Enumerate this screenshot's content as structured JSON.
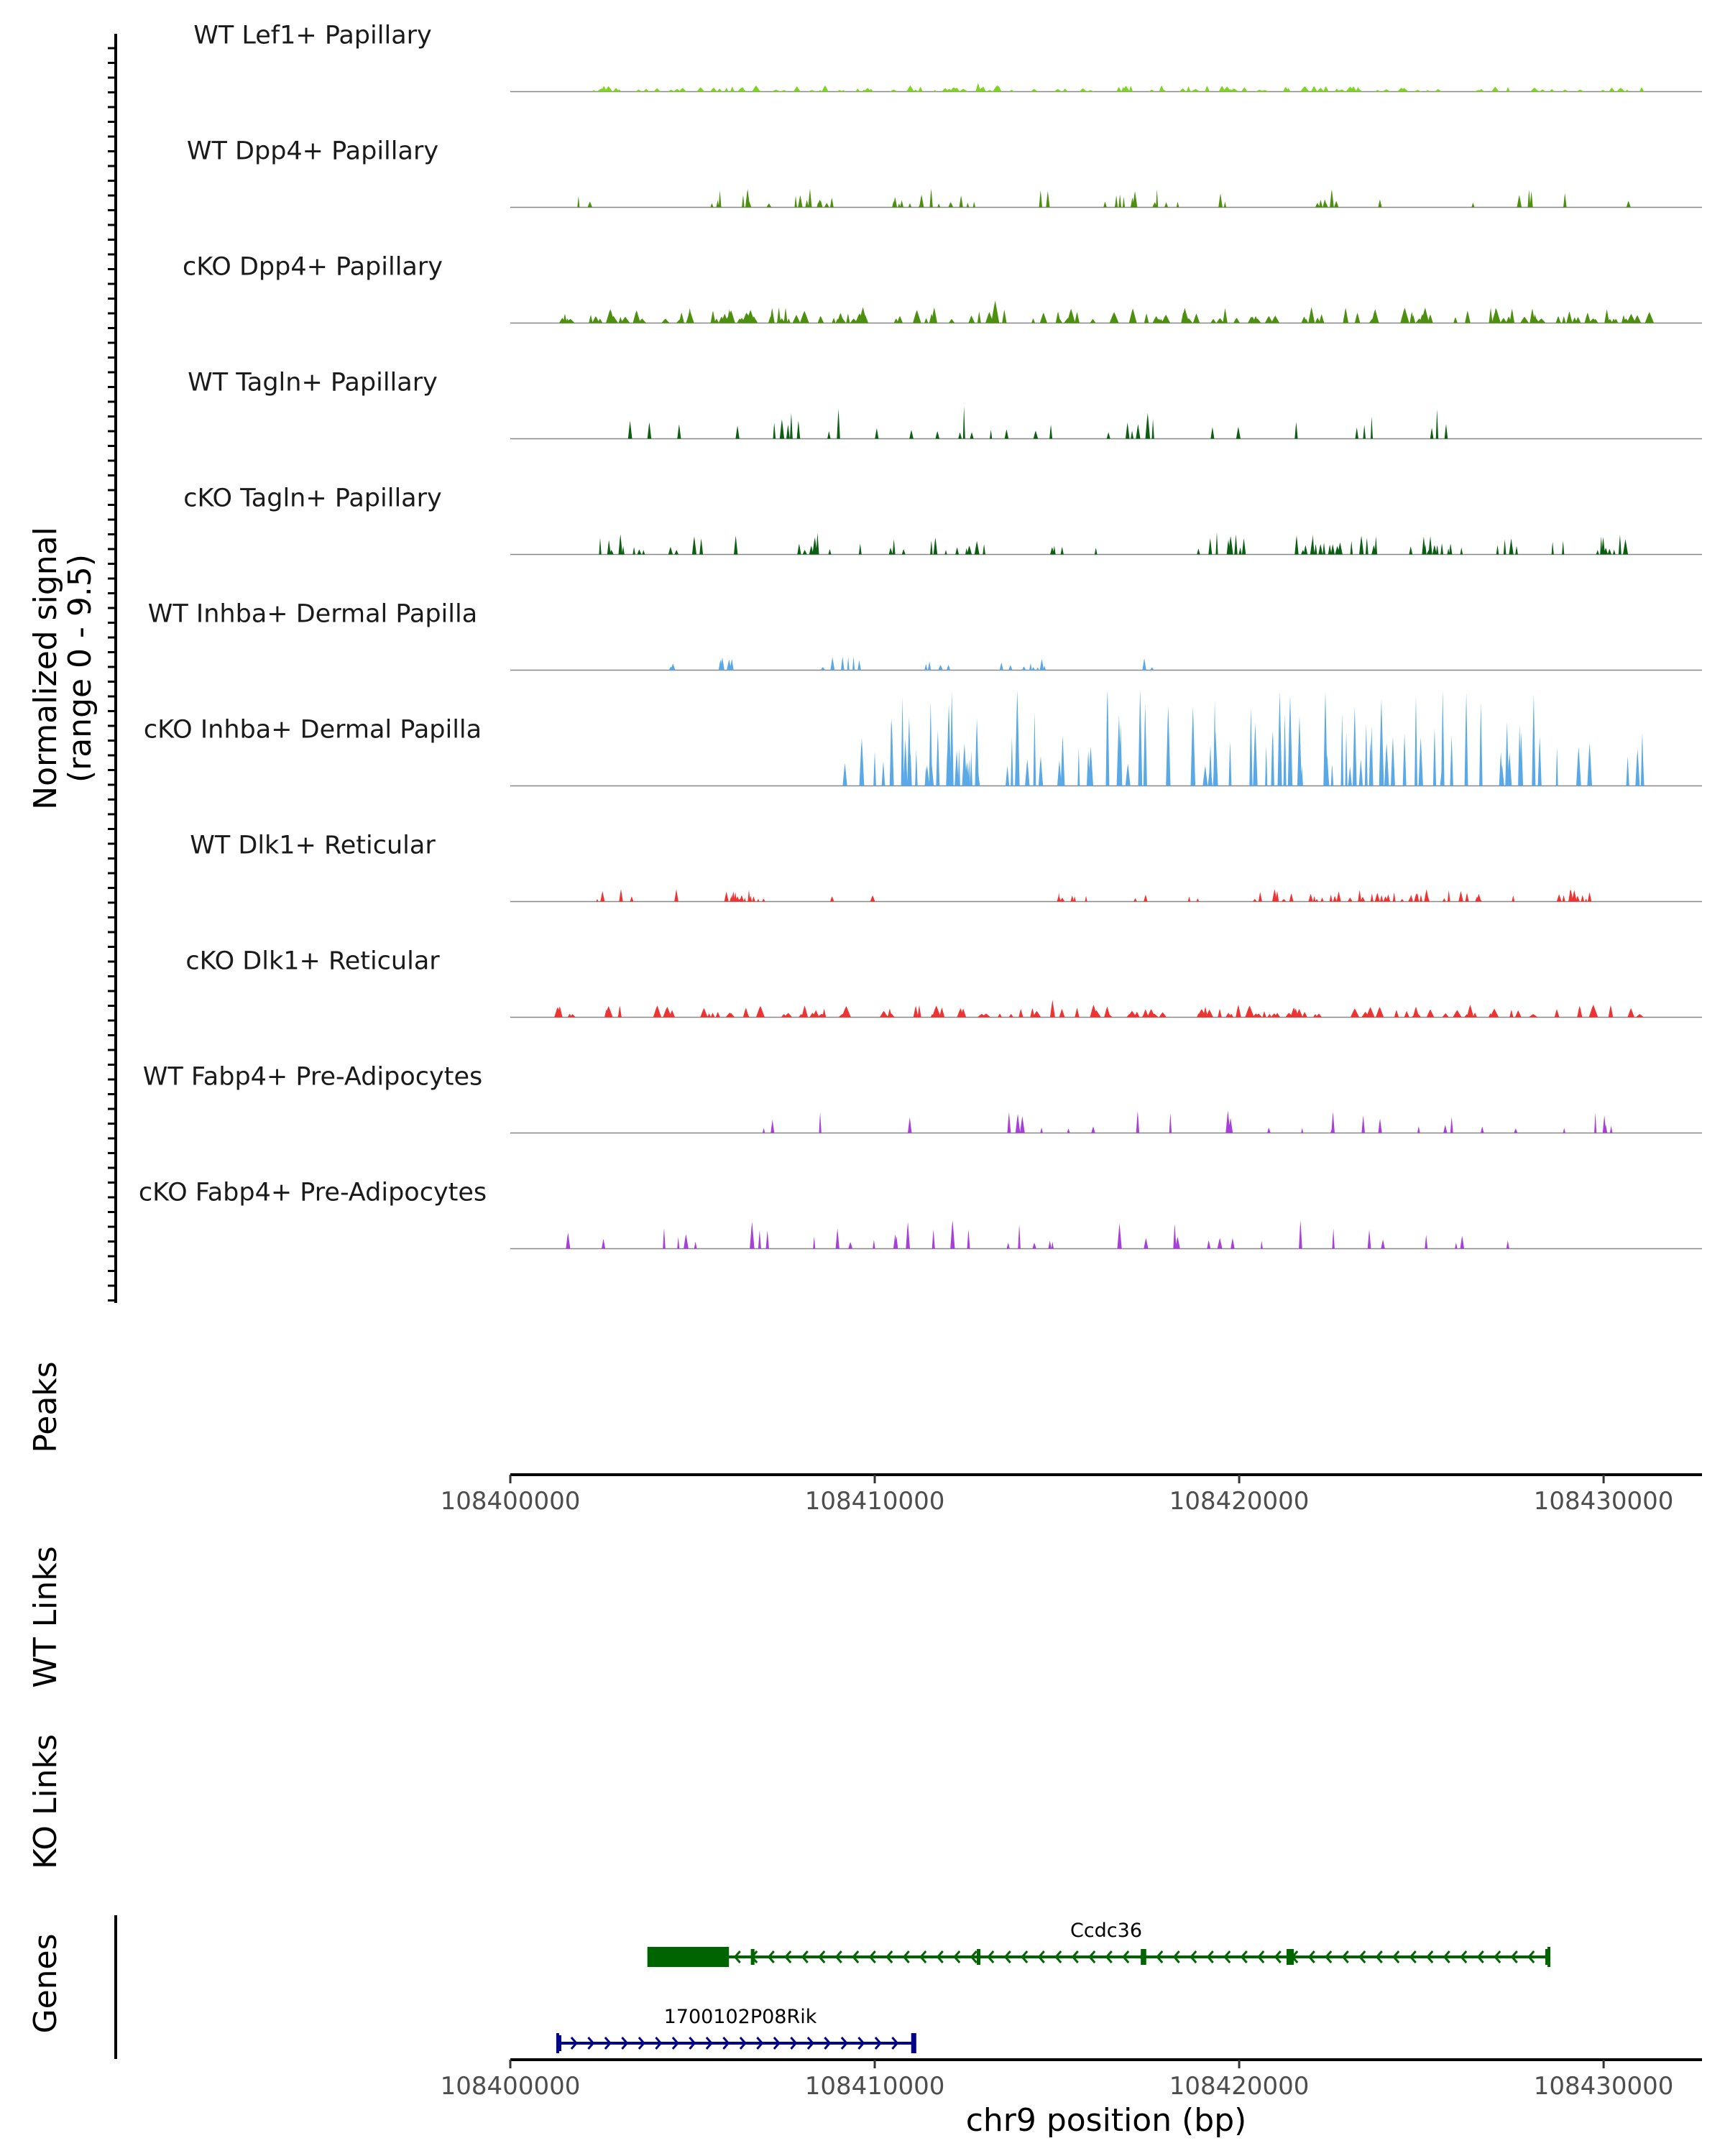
{
  "chart_data": {
    "type": "area",
    "title": "",
    "coverage": {
      "ylabel_line1": "Normalized signal",
      "ylabel_line2": "(range 0 - 9.5)",
      "ylim": [
        0,
        9.5
      ],
      "tracks": [
        {
          "name": "WT Lef1+ Papillary",
          "color": "#7FD322",
          "x_start": 108401500,
          "x_end": 108431200,
          "style": "dense",
          "n_peaks": 120,
          "max_value": 0.7,
          "seed": 11
        },
        {
          "name": "WT Dpp4+ Papillary",
          "color": "#4D8F0E",
          "x_start": 108401300,
          "x_end": 108431000,
          "style": "clustered",
          "n_peaks": 60,
          "max_value": 1.5,
          "seed": 12
        },
        {
          "name": "cKO Dpp4+ Papillary",
          "color": "#4D8F0E",
          "x_start": 108401300,
          "x_end": 108431300,
          "style": "dense",
          "n_peaks": 150,
          "max_value": 1.8,
          "seed": 13
        },
        {
          "name": "WT Tagln+ Papillary",
          "color": "#0B5E12",
          "x_start": 108402200,
          "x_end": 108429300,
          "style": "sparse",
          "n_peaks": 36,
          "max_value": 2.6,
          "seed": 14
        },
        {
          "name": "cKO Tagln+ Papillary",
          "color": "#0B5E12",
          "x_start": 108401800,
          "x_end": 108430600,
          "style": "clustered",
          "n_peaks": 90,
          "max_value": 1.8,
          "seed": 15
        },
        {
          "name": "WT Inhba+ Dermal Papilla",
          "color": "#5AA9E6",
          "x_start": 108401800,
          "x_end": 108418300,
          "style": "clustered",
          "n_peaks": 28,
          "max_value": 1.1,
          "seed": 16
        },
        {
          "name": "cKO Inhba+ Dermal Papilla",
          "color": "#5AA9E6",
          "x_start": 108409000,
          "x_end": 108431200,
          "style": "sparse",
          "n_peaks": 110,
          "max_value": 7.8,
          "seed": 17
        },
        {
          "name": "WT Dlk1+ Reticular",
          "color": "#EE3333",
          "x_start": 108402000,
          "x_end": 108430100,
          "style": "clustered",
          "n_peaks": 80,
          "max_value": 1.0,
          "seed": 18
        },
        {
          "name": "cKO Dlk1+ Reticular",
          "color": "#EE3333",
          "x_start": 108401300,
          "x_end": 108431100,
          "style": "dense",
          "n_peaks": 130,
          "max_value": 1.4,
          "seed": 19
        },
        {
          "name": "WT Fabp4+ Pre-Adipocytes",
          "color": "#A73FD9",
          "x_start": 108404500,
          "x_end": 108431000,
          "style": "sparse",
          "n_peaks": 30,
          "max_value": 1.8,
          "seed": 20
        },
        {
          "name": "cKO Fabp4+ Pre-Adipocytes",
          "color": "#A73FD9",
          "x_start": 108401500,
          "x_end": 108429500,
          "style": "sparse",
          "n_peaks": 40,
          "max_value": 2.3,
          "seed": 21
        }
      ]
    },
    "panels": [
      "Peaks",
      "WT Links",
      "KO Links",
      "Genes"
    ],
    "x_axis": {
      "range": [
        108400000,
        108432700
      ],
      "ticks": [
        108400000,
        108410000,
        108420000,
        108430000
      ],
      "tick_labels": [
        "108400000",
        "108410000",
        "108420000",
        "108430000"
      ],
      "xlabel": "chr9 position (bp)"
    },
    "genes": [
      {
        "name": "Ccdc36",
        "strand": "-",
        "color": "#006400",
        "start": 108403800,
        "end": 108428500,
        "coding_start": 108403800,
        "coding_end": 108406000,
        "exons": [
          {
            "start": 108403800,
            "end": 108406000
          },
          {
            "start": 108406600,
            "end": 108406700
          },
          {
            "start": 108412800,
            "end": 108412900
          },
          {
            "start": 108417300,
            "end": 108417450
          },
          {
            "start": 108421300,
            "end": 108421500
          },
          {
            "start": 108428400,
            "end": 108428500
          }
        ]
      },
      {
        "name": "1700102P08Rik",
        "strand": "+",
        "color": "#00008B",
        "start": 108401300,
        "end": 108411100,
        "coding_start": 108411000,
        "coding_end": 108411100,
        "exons": [
          {
            "start": 108401300,
            "end": 108401400
          },
          {
            "start": 108411000,
            "end": 108411100
          }
        ]
      }
    ]
  }
}
